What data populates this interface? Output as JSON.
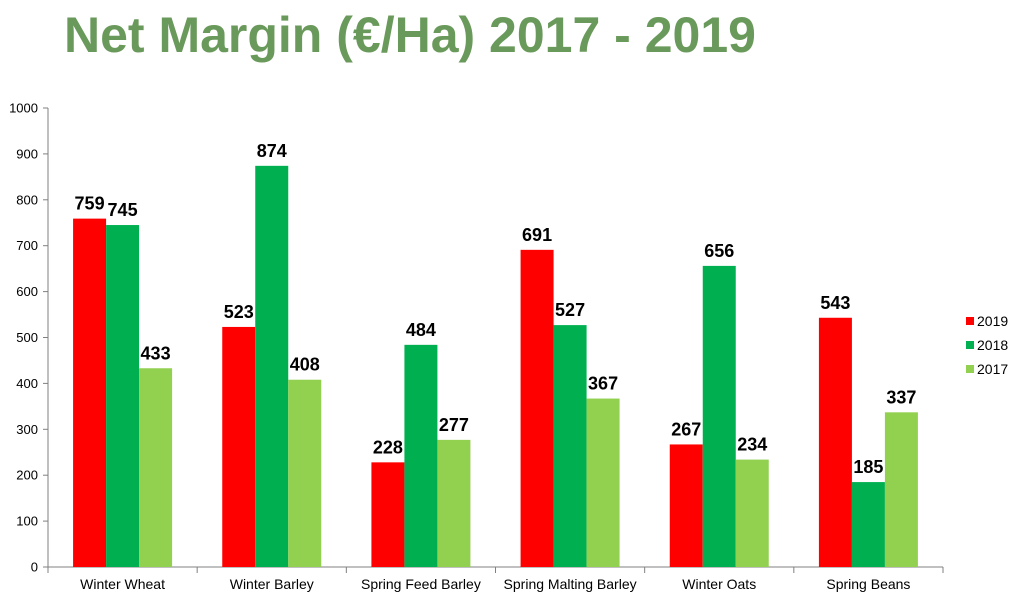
{
  "chart_data": {
    "type": "bar",
    "title": "Net Margin (€/Ha) 2017 - 2019",
    "xlabel": "",
    "ylabel": "",
    "ylim": [
      0,
      1000
    ],
    "yticks": [
      0,
      100,
      200,
      300,
      400,
      500,
      600,
      700,
      800,
      900,
      1000
    ],
    "categories": [
      "Winter Wheat",
      "Winter Barley",
      "Spring Feed Barley",
      "Spring Malting Barley",
      "Winter Oats",
      "Spring Beans"
    ],
    "series": [
      {
        "name": "2019",
        "color": "#ff0000",
        "values": [
          759,
          523,
          228,
          691,
          267,
          543
        ]
      },
      {
        "name": "2018",
        "color": "#00b050",
        "values": [
          745,
          874,
          484,
          527,
          656,
          185
        ]
      },
      {
        "name": "2017",
        "color": "#92d050",
        "values": [
          433,
          408,
          277,
          367,
          234,
          337
        ]
      }
    ],
    "grid": false,
    "legend_position": "right",
    "data_labels": true
  }
}
